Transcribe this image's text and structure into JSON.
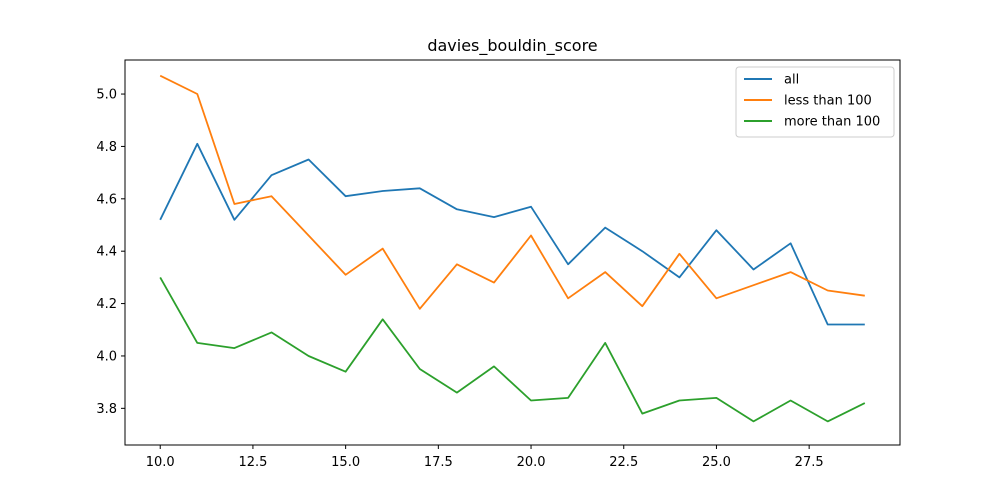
{
  "chart_data": {
    "type": "line",
    "title": "davies_bouldin_score",
    "xlabel": "",
    "ylabel": "",
    "xlim": [
      9.05,
      29.95
    ],
    "ylim": [
      3.66,
      5.13
    ],
    "x_ticks": [
      10.0,
      12.5,
      15.0,
      17.5,
      20.0,
      22.5,
      25.0,
      27.5
    ],
    "x_tick_labels": [
      "10.0",
      "12.5",
      "15.0",
      "17.5",
      "20.0",
      "22.5",
      "25.0",
      "27.5"
    ],
    "y_ticks": [
      3.8,
      4.0,
      4.2,
      4.4,
      4.6,
      4.8,
      5.0
    ],
    "y_tick_labels": [
      "3.8",
      "4.0",
      "4.2",
      "4.4",
      "4.6",
      "4.8",
      "5.0"
    ],
    "grid": false,
    "legend_position": "top-right",
    "x": [
      10,
      11,
      12,
      13,
      14,
      15,
      16,
      17,
      18,
      19,
      20,
      21,
      22,
      23,
      24,
      25,
      26,
      27,
      28,
      29
    ],
    "series": [
      {
        "name": "all",
        "color": "#1f77b4",
        "values": [
          4.52,
          4.81,
          4.52,
          4.69,
          4.75,
          4.61,
          4.63,
          4.64,
          4.56,
          4.53,
          4.57,
          4.35,
          4.49,
          4.4,
          4.3,
          4.48,
          4.33,
          4.43,
          4.12,
          4.12
        ]
      },
      {
        "name": "less than 100",
        "color": "#ff7f0e",
        "values": [
          5.07,
          5.0,
          4.58,
          4.61,
          4.46,
          4.31,
          4.41,
          4.18,
          4.35,
          4.28,
          4.46,
          4.22,
          4.32,
          4.19,
          4.39,
          4.22,
          4.27,
          4.32,
          4.25,
          4.23
        ]
      },
      {
        "name": "more than 100",
        "color": "#2ca02c",
        "values": [
          4.3,
          4.05,
          4.03,
          4.09,
          4.0,
          3.94,
          4.14,
          3.95,
          3.86,
          3.96,
          3.83,
          3.84,
          4.05,
          3.78,
          3.83,
          3.84,
          3.75,
          3.83,
          3.75,
          3.82
        ]
      }
    ]
  }
}
